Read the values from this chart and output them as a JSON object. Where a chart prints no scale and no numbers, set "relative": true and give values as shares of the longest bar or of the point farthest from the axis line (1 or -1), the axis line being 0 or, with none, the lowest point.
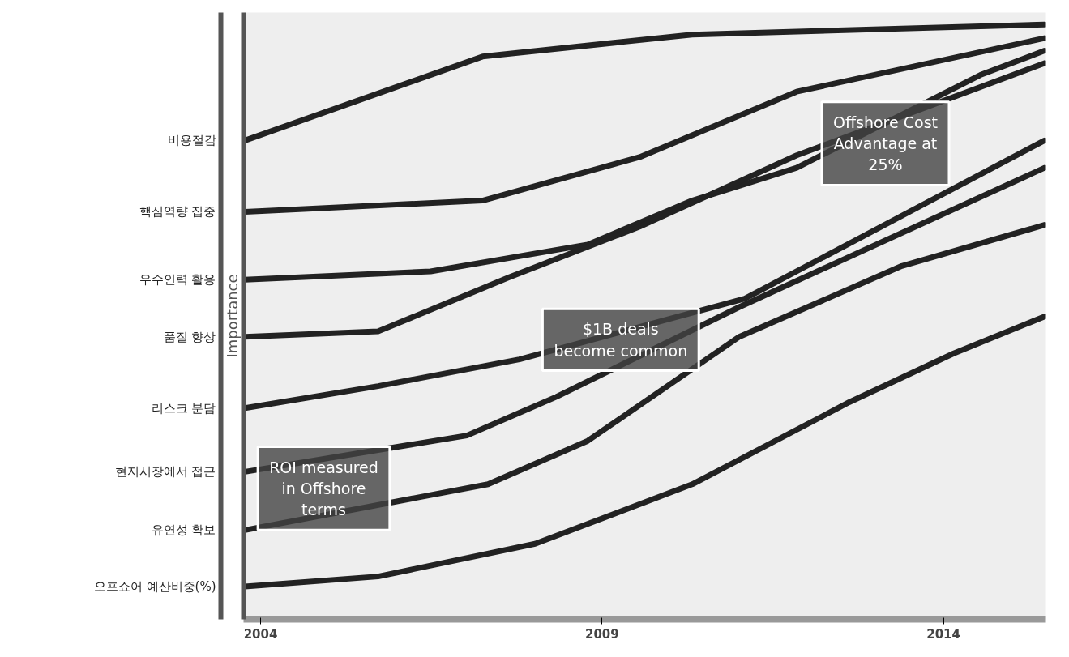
{
  "chart_data": {
    "type": "line",
    "relative": true,
    "ylabel": "Importance",
    "xlim": [
      2003.75,
      2015.5
    ],
    "xticks": [
      2004,
      2009,
      2014
    ],
    "grid": false,
    "line_style": "solid",
    "marker": "none",
    "series": [
      {
        "name": "비용절감",
        "color": "#222222",
        "x": [
          2003.77,
          2007.25,
          2010.32,
          2013.39,
          2015.48
        ],
        "values": [
          0.805,
          0.946,
          0.983,
          0.993,
          1.0
        ]
      },
      {
        "name": "핵심역량 집중",
        "color": "#222222",
        "x": [
          2003.77,
          2007.25,
          2009.55,
          2011.85,
          2015.48
        ],
        "values": [
          0.685,
          0.704,
          0.777,
          0.887,
          0.977
        ]
      },
      {
        "name": "우수인력 활용",
        "color": "#222222",
        "x": [
          2003.77,
          2006.49,
          2008.79,
          2010.32,
          2011.85,
          2014.54,
          2015.48
        ],
        "values": [
          0.571,
          0.585,
          0.63,
          0.704,
          0.759,
          0.915,
          0.956
        ]
      },
      {
        "name": "품질 향상",
        "color": "#222222",
        "x": [
          2003.77,
          2005.72,
          2007.64,
          2009.55,
          2011.85,
          2015.48
        ],
        "values": [
          0.475,
          0.484,
          0.575,
          0.66,
          0.78,
          0.935
        ]
      },
      {
        "name": "리스크 분담",
        "color": "#222222",
        "x": [
          2003.77,
          2005.72,
          2007.79,
          2011.09,
          2015.48
        ],
        "values": [
          0.355,
          0.392,
          0.437,
          0.539,
          0.805
        ]
      },
      {
        "name": "현지시장에서 접근",
        "color": "#222222",
        "x": [
          2003.77,
          2007.02,
          2008.33,
          2011.01,
          2015.48
        ],
        "values": [
          0.248,
          0.309,
          0.374,
          0.525,
          0.759
        ]
      },
      {
        "name": "유연성 확보",
        "color": "#222222",
        "x": [
          2003.77,
          2007.33,
          2008.79,
          2011.01,
          2013.39,
          2015.48
        ],
        "values": [
          0.15,
          0.227,
          0.3,
          0.475,
          0.594,
          0.663
        ]
      },
      {
        "name": "오프쇼어 예산비중(%)",
        "color": "#222222",
        "x": [
          2003.77,
          2005.72,
          2008.02,
          2010.32,
          2012.62,
          2014.15,
          2015.48
        ],
        "values": [
          0.055,
          0.072,
          0.127,
          0.227,
          0.365,
          0.447,
          0.509
        ]
      }
    ],
    "annotations": [
      "ROI measured in Offshore terms",
      "$1B deals become common",
      "Offshore Cost Advantage at 25%"
    ]
  }
}
